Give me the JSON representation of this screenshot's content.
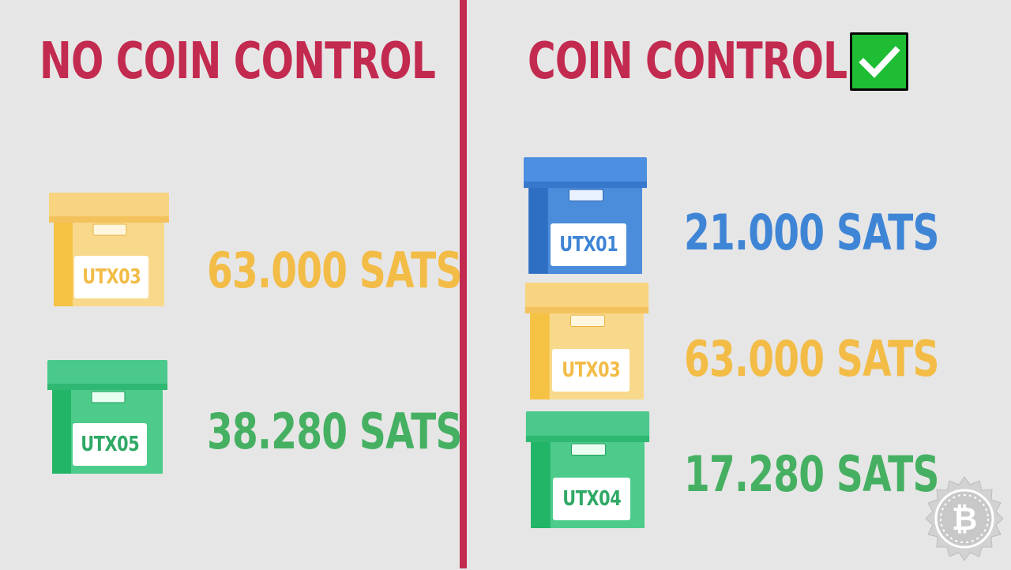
{
  "titles": {
    "left": "NO COIN CONTROL",
    "right": "COIN CONTROL:"
  },
  "colors": {
    "title": "#c32a50",
    "divider": "#c32a50",
    "yellow_text": "#f2bc47",
    "green_text": "#46b062",
    "blue_text": "#3f85d6",
    "check_green": "#1fbd34"
  },
  "left_column": {
    "boxes": [
      {
        "label": "UTX03",
        "amount": "63.000 SATS",
        "color": "yellow",
        "icon": "storage-box-icon"
      },
      {
        "label": "UTX05",
        "amount": "38.280 SATS",
        "color": "green",
        "icon": "storage-box-icon"
      }
    ]
  },
  "right_column": {
    "boxes": [
      {
        "label": "UTX01",
        "amount": "21.000 SATS",
        "color": "blue",
        "icon": "storage-box-icon"
      },
      {
        "label": "UTX03",
        "amount": "63.000 SATS",
        "color": "yellow",
        "icon": "storage-box-icon"
      },
      {
        "label": "UTX04",
        "amount": "17.280 SATS",
        "color": "green",
        "icon": "storage-box-icon"
      }
    ]
  },
  "icons": {
    "check": "checkmark-icon",
    "logo": "bitcoin-gear-logo-icon"
  }
}
